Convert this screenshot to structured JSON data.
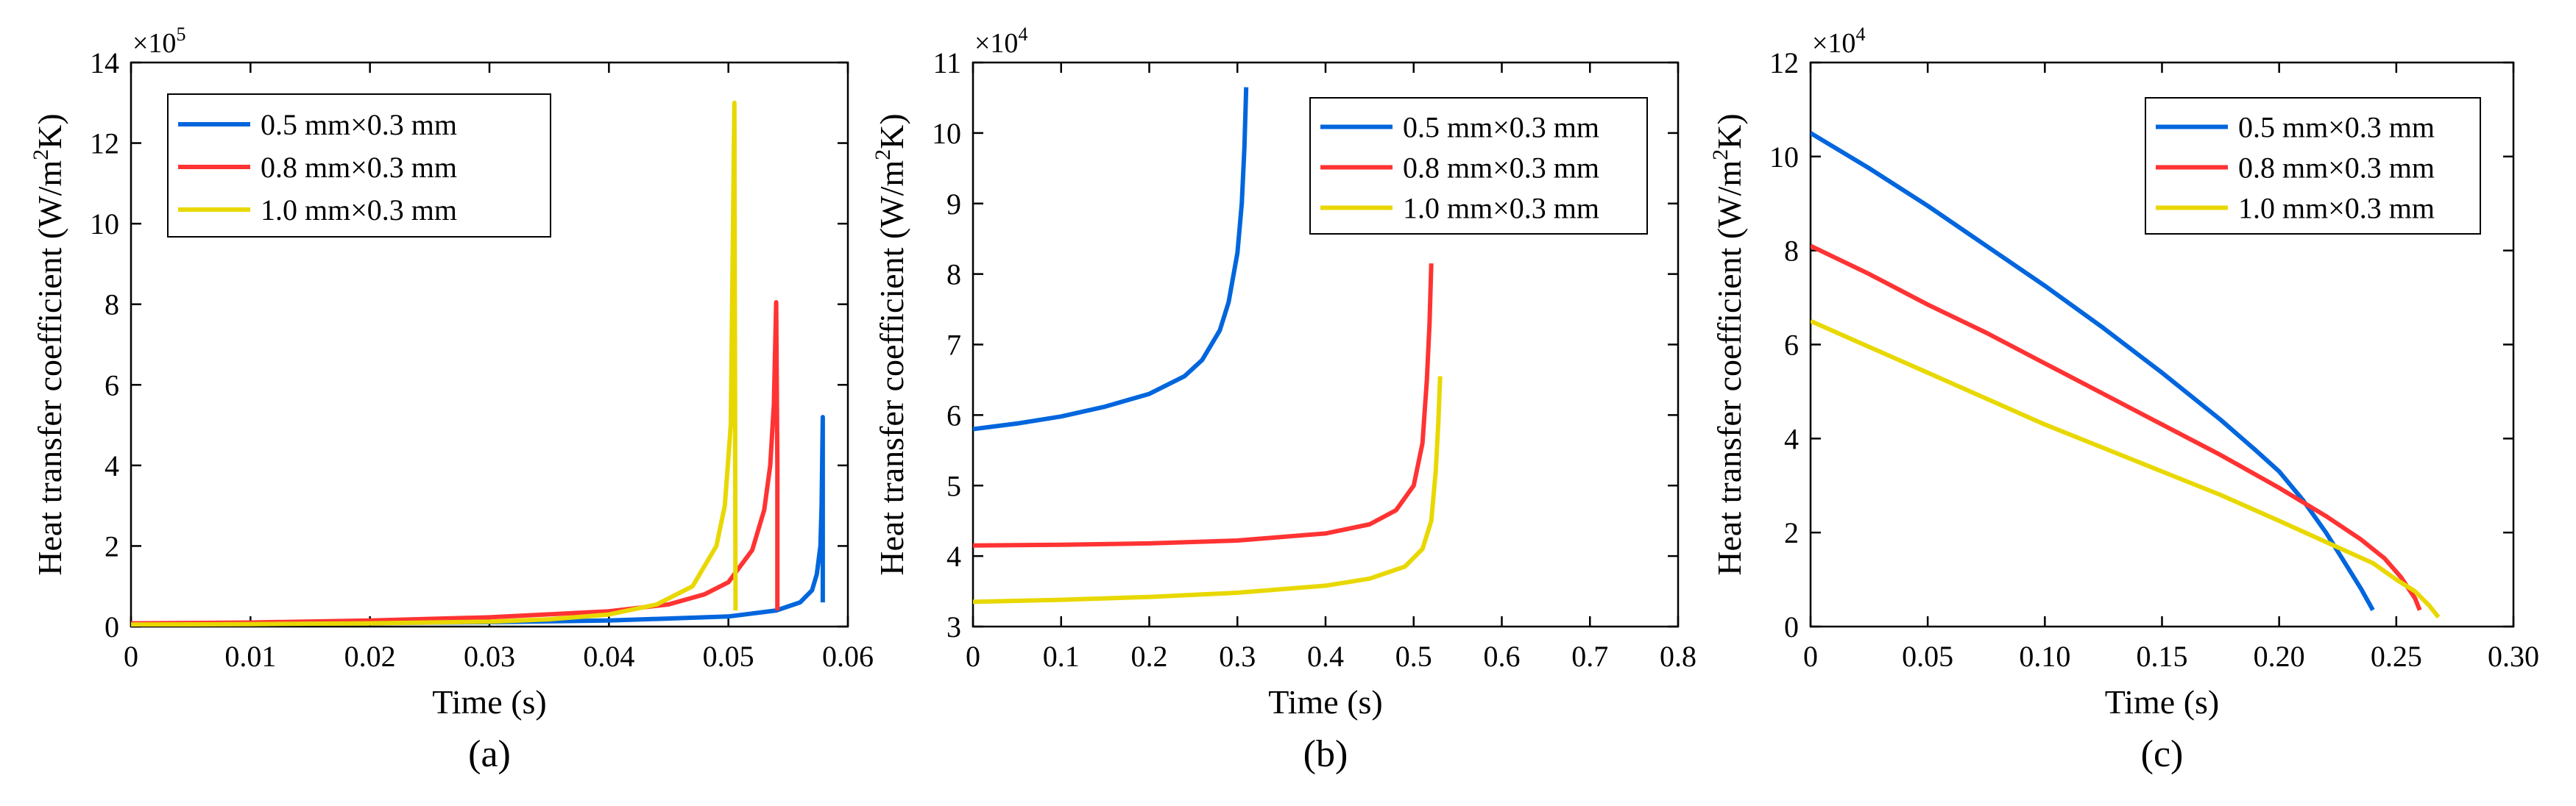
{
  "chart_data": [
    {
      "type": "line",
      "panel_label": "(a)",
      "xlabel": "Time (s)",
      "ylabel": "Heat transfer coefficient (W/m²K)",
      "ylabel_parts": [
        "Heat transfer coefficient (W/m",
        "2",
        "K)"
      ],
      "multiplier": {
        "base": "×10",
        "exp": "5"
      },
      "xlim": [
        0,
        0.06
      ],
      "ylim": [
        0,
        14
      ],
      "xticks": [
        0,
        0.01,
        0.02,
        0.03,
        0.04,
        0.05,
        0.06
      ],
      "xtick_labels": [
        "0",
        "0.01",
        "0.02",
        "0.03",
        "0.04",
        "0.05",
        "0.06"
      ],
      "yticks": [
        0,
        2,
        4,
        6,
        8,
        10,
        12,
        14
      ],
      "ytick_labels": [
        "0",
        "2",
        "4",
        "6",
        "8",
        "10",
        "12",
        "14"
      ],
      "legend_position": "top-left",
      "series": [
        {
          "name": "0.5 mm×0.3 mm",
          "color": "#0066dd",
          "x": [
            0,
            0.01,
            0.02,
            0.03,
            0.04,
            0.05,
            0.054,
            0.056,
            0.057,
            0.0574,
            0.0577,
            0.0578,
            0.0579,
            0.0579
          ],
          "y": [
            0.06,
            0.07,
            0.09,
            0.11,
            0.15,
            0.25,
            0.4,
            0.6,
            0.9,
            1.3,
            2.0,
            3.0,
            5.2,
            0.6
          ]
        },
        {
          "name": "0.8 mm×0.3 mm",
          "color": "#ff3333",
          "x": [
            0,
            0.01,
            0.02,
            0.03,
            0.04,
            0.045,
            0.048,
            0.05,
            0.052,
            0.053,
            0.0535,
            0.0538,
            0.054,
            0.0541,
            0.0541
          ],
          "y": [
            0.08,
            0.1,
            0.15,
            0.23,
            0.38,
            0.55,
            0.8,
            1.1,
            1.9,
            2.9,
            4.0,
            5.5,
            8.05,
            4.0,
            0.4
          ]
        },
        {
          "name": "1.0 mm×0.3 mm",
          "color": "#e8d800",
          "x": [
            0,
            0.01,
            0.02,
            0.03,
            0.035,
            0.04,
            0.044,
            0.047,
            0.049,
            0.0497,
            0.0502,
            0.0505,
            0.0506
          ],
          "y": [
            0.05,
            0.06,
            0.08,
            0.12,
            0.18,
            0.3,
            0.55,
            1.0,
            2.0,
            3.0,
            5.0,
            13.0,
            0.4
          ]
        }
      ]
    },
    {
      "type": "line",
      "panel_label": "(b)",
      "xlabel": "Time (s)",
      "ylabel": "Heat transfer coefficient (W/m²K)",
      "ylabel_parts": [
        "Heat transfer coefficient (W/m",
        "2",
        "K)"
      ],
      "multiplier": {
        "base": "×10",
        "exp": "4"
      },
      "xlim": [
        0,
        0.8
      ],
      "ylim": [
        3,
        11
      ],
      "xticks": [
        0,
        0.1,
        0.2,
        0.3,
        0.4,
        0.5,
        0.6,
        0.7,
        0.8
      ],
      "xtick_labels": [
        "0",
        "0.1",
        "0.2",
        "0.3",
        "0.4",
        "0.5",
        "0.6",
        "0.7",
        "0.8"
      ],
      "yticks": [
        3,
        4,
        5,
        6,
        7,
        8,
        9,
        10,
        11
      ],
      "ytick_labels": [
        "3",
        "4",
        "5",
        "6",
        "7",
        "8",
        "9",
        "10",
        "11"
      ],
      "legend_position": "top-right",
      "series": [
        {
          "name": "0.5 mm×0.3 mm",
          "color": "#0066dd",
          "x": [
            0,
            0.05,
            0.1,
            0.15,
            0.2,
            0.24,
            0.26,
            0.28,
            0.29,
            0.3,
            0.305,
            0.308,
            0.31
          ],
          "y": [
            5.8,
            5.88,
            5.98,
            6.12,
            6.3,
            6.55,
            6.78,
            7.2,
            7.6,
            8.3,
            9.0,
            9.8,
            10.65
          ]
        },
        {
          "name": "0.8 mm×0.3 mm",
          "color": "#ff3333",
          "x": [
            0,
            0.1,
            0.2,
            0.3,
            0.4,
            0.45,
            0.48,
            0.5,
            0.51,
            0.515,
            0.518,
            0.52
          ],
          "y": [
            4.15,
            4.16,
            4.18,
            4.22,
            4.32,
            4.45,
            4.65,
            5.0,
            5.6,
            6.5,
            7.3,
            8.15
          ]
        },
        {
          "name": "1.0 mm×0.3 mm",
          "color": "#e8d800",
          "x": [
            0,
            0.1,
            0.2,
            0.3,
            0.4,
            0.45,
            0.49,
            0.51,
            0.52,
            0.525,
            0.528,
            0.53
          ],
          "y": [
            3.35,
            3.38,
            3.42,
            3.48,
            3.58,
            3.68,
            3.85,
            4.1,
            4.5,
            5.2,
            5.9,
            6.55
          ]
        }
      ]
    },
    {
      "type": "line",
      "panel_label": "(c)",
      "xlabel": "Time (s)",
      "ylabel": "Heat transfer coefficient (W/m²K)",
      "ylabel_parts": [
        "Heat transfer coefficient (W/m",
        "2",
        "K)"
      ],
      "multiplier": {
        "base": "×10",
        "exp": "4"
      },
      "xlim": [
        0,
        0.3
      ],
      "ylim": [
        0,
        12
      ],
      "xticks": [
        0,
        0.05,
        0.1,
        0.15,
        0.2,
        0.25,
        0.3
      ],
      "xtick_labels": [
        "0",
        "0.05",
        "0.10",
        "0.15",
        "0.20",
        "0.25",
        "0.30"
      ],
      "yticks": [
        0,
        2,
        4,
        6,
        8,
        10,
        12
      ],
      "ytick_labels": [
        "0",
        "2",
        "4",
        "6",
        "8",
        "10",
        "12"
      ],
      "legend_position": "top-right",
      "series": [
        {
          "name": "0.5 mm×0.3 mm",
          "color": "#0066dd",
          "x": [
            0,
            0.025,
            0.05,
            0.075,
            0.1,
            0.125,
            0.15,
            0.175,
            0.19,
            0.2,
            0.21,
            0.22,
            0.23,
            0.235,
            0.24
          ],
          "y": [
            10.5,
            9.75,
            8.95,
            8.1,
            7.25,
            6.35,
            5.4,
            4.4,
            3.75,
            3.3,
            2.7,
            2.0,
            1.2,
            0.8,
            0.35
          ]
        },
        {
          "name": "0.8 mm×0.3 mm",
          "color": "#ff3333",
          "x": [
            0,
            0.025,
            0.05,
            0.075,
            0.1,
            0.125,
            0.15,
            0.175,
            0.2,
            0.22,
            0.235,
            0.245,
            0.252,
            0.258,
            0.26
          ],
          "y": [
            8.1,
            7.5,
            6.85,
            6.25,
            5.6,
            4.95,
            4.3,
            3.65,
            2.95,
            2.35,
            1.85,
            1.45,
            1.05,
            0.6,
            0.35
          ]
        },
        {
          "name": "1.0 mm×0.3 mm",
          "color": "#e8d800",
          "x": [
            0,
            0.025,
            0.05,
            0.075,
            0.1,
            0.125,
            0.15,
            0.175,
            0.2,
            0.22,
            0.24,
            0.25,
            0.258,
            0.264,
            0.268
          ],
          "y": [
            6.5,
            5.95,
            5.4,
            4.85,
            4.3,
            3.8,
            3.3,
            2.8,
            2.25,
            1.8,
            1.35,
            1.0,
            0.75,
            0.45,
            0.2
          ]
        }
      ]
    }
  ]
}
